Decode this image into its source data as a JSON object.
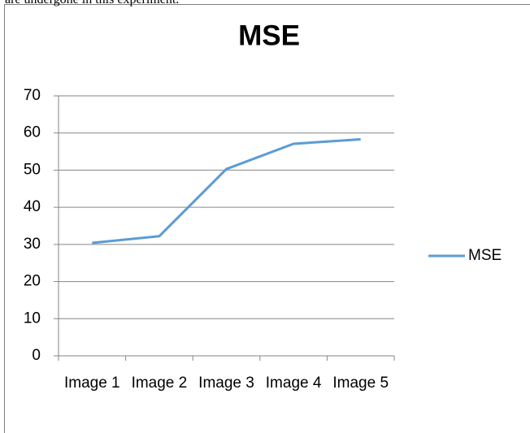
{
  "page_text": "are undergone in this experiment.",
  "chart_data": {
    "type": "line",
    "title": "MSE",
    "categories": [
      "Image 1",
      "Image 2",
      "Image 3",
      "Image 4",
      "Image 5"
    ],
    "series": [
      {
        "name": "MSE",
        "color": "#5b9bd5",
        "values": [
          30.4,
          32.2,
          50.3,
          57.1,
          58.3
        ]
      }
    ],
    "ylim": [
      0,
      70
    ],
    "yticks": [
      0,
      10,
      20,
      30,
      40,
      50,
      60,
      70
    ],
    "grid": true,
    "legend": "right"
  }
}
